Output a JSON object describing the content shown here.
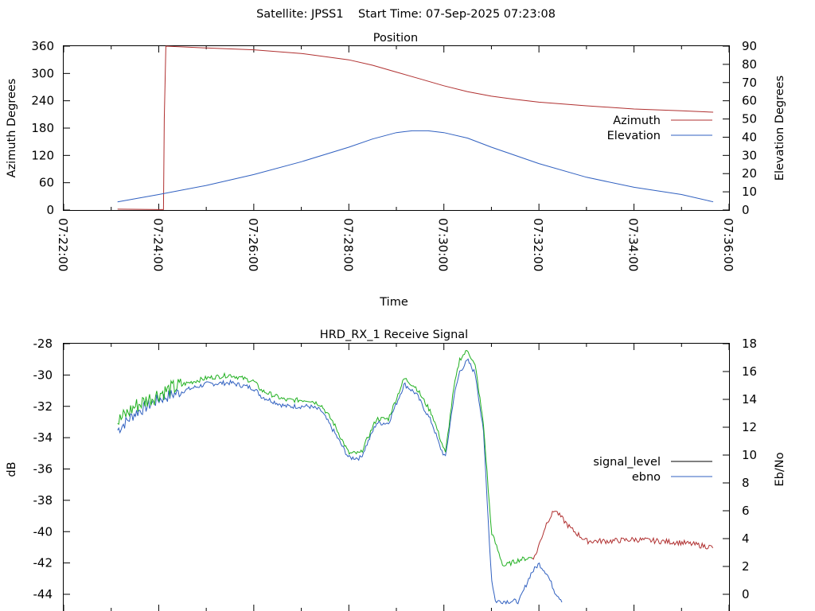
{
  "header": {
    "title": "Satellite: JPSS1    Start Time: 07-Sep-2025 07:23:08"
  },
  "chart_data": [
    {
      "type": "line",
      "title": "Position",
      "xlabel": "Time",
      "ylabel": "Azimuth Degrees",
      "y2label": "Elevation Degrees",
      "xlim": [
        "07:22:00",
        "07:36:00"
      ],
      "ylim": [
        0,
        360
      ],
      "y2lim": [
        0,
        90
      ],
      "x_ticks": [
        "07:22:00",
        "07:24:00",
        "07:26:00",
        "07:28:00",
        "07:30:00",
        "07:32:00",
        "07:34:00",
        "07:36:00"
      ],
      "y_ticks": [
        "0",
        "60",
        "120",
        "180",
        "240",
        "300",
        "360"
      ],
      "y2_ticks": [
        "0",
        "10",
        "20",
        "30",
        "40",
        "50",
        "60",
        "70",
        "80",
        "90"
      ],
      "legend_position": "right",
      "series": [
        {
          "name": "Azimuth",
          "axis": "left",
          "color": "#b03030",
          "x": [
            "07:23:08",
            "07:24:00",
            "07:24:06",
            "07:24:07",
            "07:24:09",
            "07:25:00",
            "07:26:00",
            "07:27:00",
            "07:28:00",
            "07:28:30",
            "07:29:00",
            "07:29:30",
            "07:30:00",
            "07:30:30",
            "07:31:00",
            "07:31:30",
            "07:32:00",
            "07:33:00",
            "07:34:00",
            "07:35:00",
            "07:35:40"
          ],
          "values": [
            2,
            1,
            1,
            200,
            360,
            356,
            352,
            344,
            330,
            318,
            303,
            288,
            273,
            260,
            250,
            243,
            237,
            229,
            222,
            218,
            215
          ]
        },
        {
          "name": "Elevation",
          "axis": "right",
          "color": "#3060c0",
          "x": [
            "07:23:08",
            "07:24:00",
            "07:25:00",
            "07:26:00",
            "07:27:00",
            "07:28:00",
            "07:28:30",
            "07:29:00",
            "07:29:20",
            "07:29:40",
            "07:30:00",
            "07:30:30",
            "07:31:00",
            "07:32:00",
            "07:33:00",
            "07:34:00",
            "07:35:00",
            "07:35:40"
          ],
          "values": [
            4.5,
            8.5,
            13.5,
            19.5,
            26.5,
            34.5,
            39,
            42.5,
            43.5,
            43.5,
            42.5,
            39.5,
            34.5,
            25.5,
            18,
            12.5,
            8.5,
            4.5
          ]
        }
      ]
    },
    {
      "type": "line",
      "title": "HRD_RX_1 Receive Signal",
      "xlabel": "",
      "ylabel": "dB",
      "y2label": "Eb/No",
      "ylim": [
        -44,
        -28
      ],
      "y2lim": [
        0,
        18
      ],
      "y_ticks": [
        "-28",
        "-30",
        "-32",
        "-34",
        "-36",
        "-38",
        "-40",
        "-42",
        "-44"
      ],
      "y2_ticks": [
        "0",
        "2",
        "4",
        "6",
        "8",
        "10",
        "12",
        "14",
        "16",
        "18"
      ],
      "legend_position": "right",
      "series": [
        {
          "name": "signal_level",
          "axis": "left",
          "color": "#000000",
          "visible_color": "#20b020",
          "tail_color": "#b03030",
          "x": [
            "07:23:08",
            "07:23:30",
            "07:24:00",
            "07:24:30",
            "07:25:00",
            "07:25:30",
            "07:26:00",
            "07:26:10",
            "07:26:40",
            "07:27:10",
            "07:27:25",
            "07:27:40",
            "07:28:00",
            "07:28:15",
            "07:28:35",
            "07:28:50",
            "07:29:10",
            "07:29:25",
            "07:29:45",
            "07:29:55",
            "07:30:02",
            "07:30:12",
            "07:30:20",
            "07:30:30",
            "07:30:40",
            "07:30:50",
            "07:31:00",
            "07:31:15",
            "07:31:35",
            "07:31:55",
            "07:32:10",
            "07:32:20",
            "07:32:40",
            "07:33:00",
            "07:33:30",
            "07:34:00",
            "07:34:30",
            "07:35:00",
            "07:35:40"
          ],
          "values": [
            -33,
            -32,
            -31.2,
            -30.6,
            -30.2,
            -30,
            -30.4,
            -31,
            -31.6,
            -31.6,
            -31.9,
            -33,
            -35,
            -35,
            -32.8,
            -32.8,
            -30.2,
            -30.8,
            -32.5,
            -34,
            -35,
            -31,
            -29,
            -28.4,
            -29.5,
            -33.2,
            -40,
            -42.2,
            -41.8,
            -41.6,
            -39.4,
            -38.6,
            -39.8,
            -40.6,
            -40.6,
            -40.5,
            -40.6,
            -40.7,
            -41
          ]
        },
        {
          "name": "ebno",
          "axis": "right",
          "color": "#3060c0",
          "x": [
            "07:23:08",
            "07:23:30",
            "07:24:00",
            "07:24:30",
            "07:25:00",
            "07:25:30",
            "07:26:00",
            "07:26:10",
            "07:26:40",
            "07:27:10",
            "07:27:25",
            "07:27:40",
            "07:28:00",
            "07:28:15",
            "07:28:35",
            "07:28:50",
            "07:29:10",
            "07:29:25",
            "07:29:45",
            "07:29:55",
            "07:30:02",
            "07:30:12",
            "07:30:20",
            "07:30:30",
            "07:30:40",
            "07:30:50",
            "07:31:00",
            "07:31:05",
            "07:31:35",
            "07:31:50",
            "07:32:00",
            "07:32:10",
            "07:32:20",
            "07:32:30"
          ],
          "values": [
            11.8,
            13,
            14,
            14.6,
            15.1,
            15.2,
            14.8,
            14.2,
            13.5,
            13.5,
            13.2,
            11.8,
            9.8,
            9.8,
            12.3,
            12.3,
            15.1,
            14.4,
            12.3,
            10.6,
            9.8,
            14,
            16,
            16.8,
            15.8,
            11.6,
            1.2,
            -0.5,
            -0.5,
            1.5,
            2.2,
            1.5,
            0.2,
            -0.5
          ]
        }
      ]
    }
  ]
}
